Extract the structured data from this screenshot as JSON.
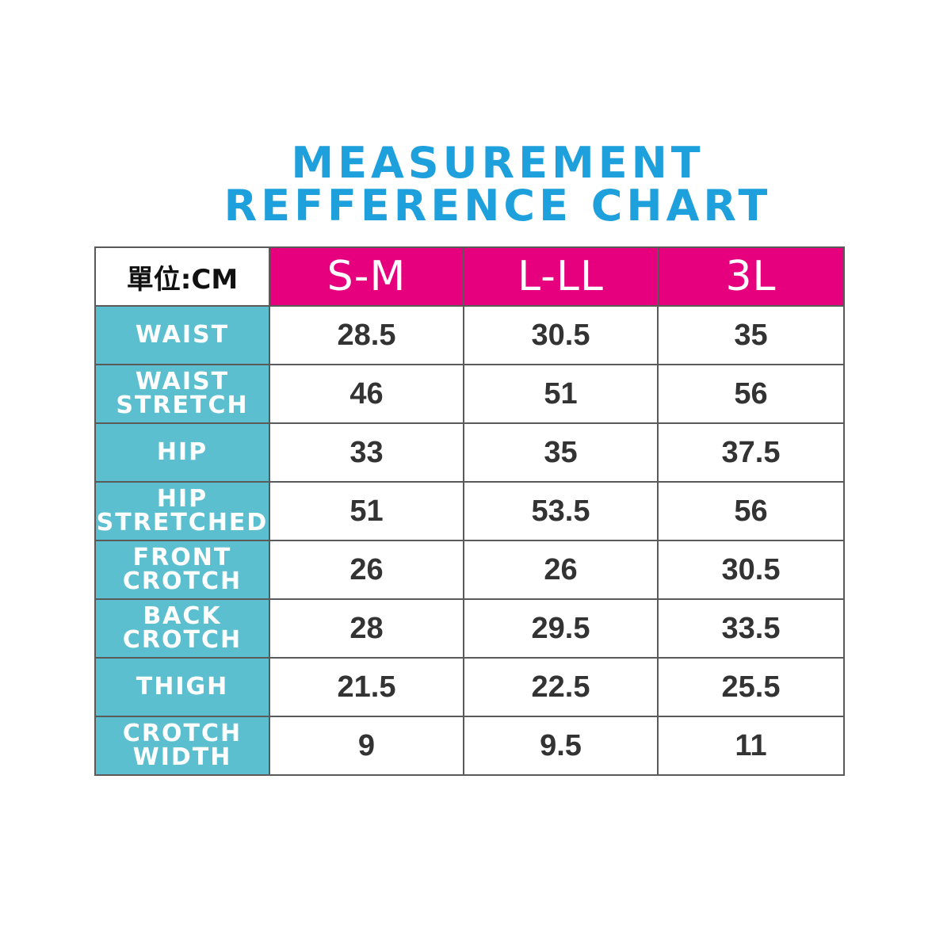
{
  "title": {
    "line1": "MEASUREMENT",
    "line2": "REFFERENCE CHART"
  },
  "table": {
    "unit_label": "單位:CM",
    "sizes": [
      "S-M",
      "L-LL",
      "3L"
    ],
    "rows": [
      {
        "label": "WAIST",
        "values": [
          "28.5",
          "30.5",
          "35"
        ]
      },
      {
        "label": "WAIST\nSTRETCH",
        "values": [
          "46",
          "51",
          "56"
        ]
      },
      {
        "label": "HIP",
        "values": [
          "33",
          "35",
          "37.5"
        ]
      },
      {
        "label": "HIP\nSTRETCHED",
        "values": [
          "51",
          "53.5",
          "56"
        ]
      },
      {
        "label": "FRONT\nCROTCH",
        "values": [
          "26",
          "26",
          "30.5"
        ]
      },
      {
        "label": "BACK\nCROTCH",
        "values": [
          "28",
          "29.5",
          "33.5"
        ]
      },
      {
        "label": "THIGH",
        "values": [
          "21.5",
          "22.5",
          "25.5"
        ]
      },
      {
        "label": "CROTCH\nWIDTH",
        "values": [
          "9",
          "9.5",
          "11"
        ]
      }
    ]
  },
  "colors": {
    "title": "#1ea0dc",
    "size_header": "#e6007e",
    "label_column": "#5bbfcf"
  }
}
